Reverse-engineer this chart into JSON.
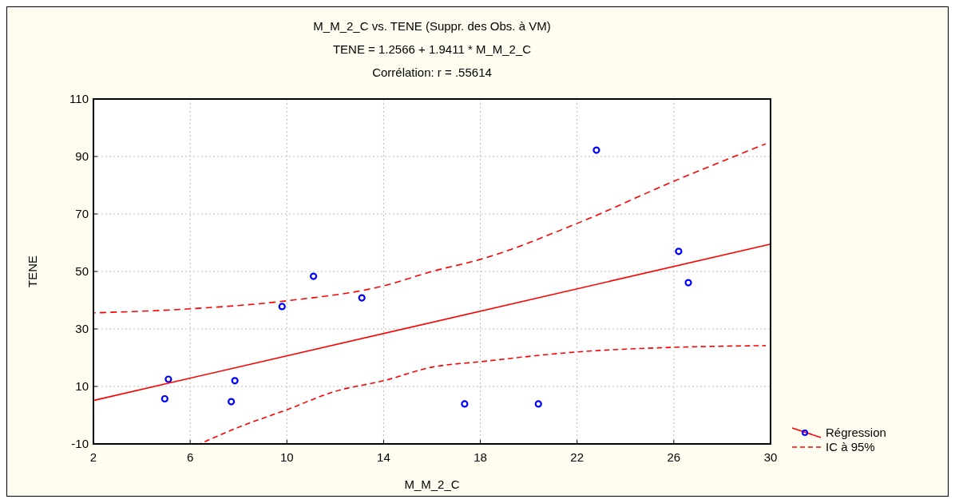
{
  "chart_data": {
    "type": "scatter",
    "title": "M_M_2_C vs. TENE (Suppr. des Obs. à VM)",
    "subtitle": "TENE = 1.2566 + 1.9411 * M_M_2_C",
    "annotations": [
      "Corrélation: r = .55614"
    ],
    "xlabel": "M_M_2_C",
    "ylabel": "TENE",
    "xlim": [
      2,
      30
    ],
    "xticks": [
      2,
      6,
      10,
      14,
      18,
      22,
      26,
      30
    ],
    "ylim": [
      -10,
      110
    ],
    "yticks": [
      -10,
      10,
      30,
      50,
      70,
      90,
      110
    ],
    "grid": true,
    "legend": "bottom right",
    "marker": "circle",
    "series": [
      {
        "color": "#0000ff",
        "x": [
          4.95,
          5.1,
          7.7,
          7.85,
          9.8,
          11.1,
          13.1,
          17.35,
          20.4,
          22.8,
          26.2,
          26.6
        ],
        "values": [
          5.7,
          12.5,
          4.7,
          12,
          37.8,
          48.3,
          40.8,
          3.9,
          3.9,
          92.2,
          57,
          46.1
        ]
      },
      {
        "type": "line",
        "name": "Régression",
        "color": "#ff0000",
        "line_style": "solid",
        "marker": "none",
        "x": [
          2,
          30
        ],
        "values": [
          5.1,
          59.5
        ]
      },
      {
        "type": "line",
        "name": "IC à 95%",
        "color": "#ff0000",
        "line_style": "dashed",
        "marker": "none",
        "x": [
          2,
          6,
          10,
          14,
          16,
          18,
          22,
          26,
          29.8
        ],
        "values": [
          35.6,
          37,
          39.8,
          45,
          50,
          54.2,
          66.7,
          81.4,
          94.4
        ]
      },
      {
        "type": "line",
        "color": "#ff0000",
        "line_style": "dashed",
        "marker": "none",
        "x": [
          6.4,
          8,
          10,
          12,
          14,
          16,
          18,
          22,
          26,
          29.8
        ],
        "values": [
          -10,
          -4.2,
          1.9,
          8.3,
          12,
          16.7,
          18.6,
          22,
          23.6,
          24.2
        ]
      }
    ]
  }
}
